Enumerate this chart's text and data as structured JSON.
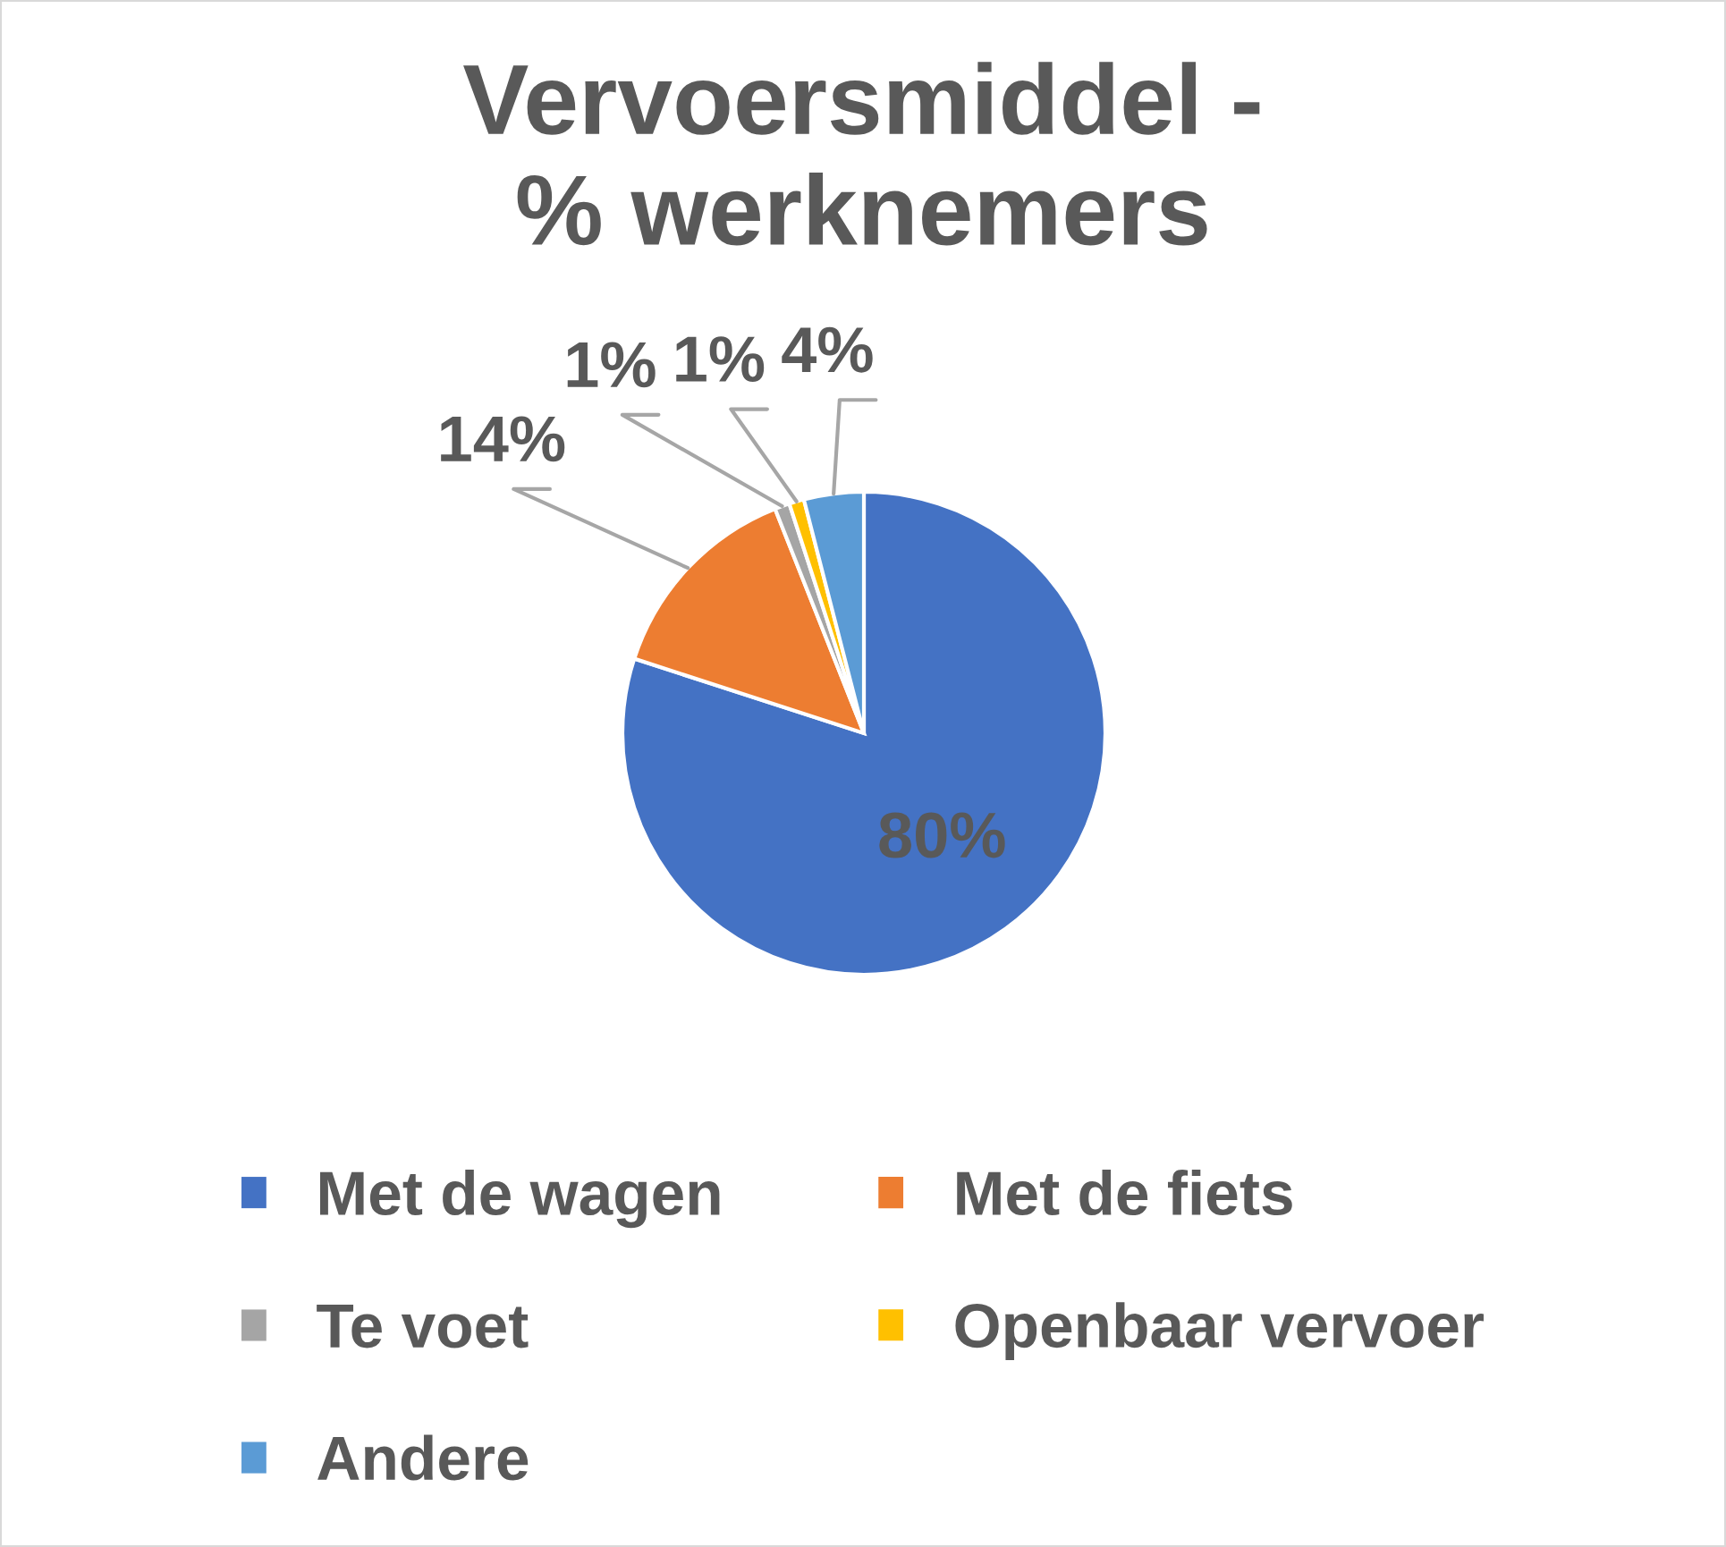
{
  "chart_data": {
    "type": "pie",
    "title": "Vervoersmiddel -\n% werknemers",
    "categories": [
      "Met de wagen",
      "Met de fiets",
      "Te voet",
      "Openbaar vervoer",
      "Andere"
    ],
    "values": [
      80,
      14,
      1,
      1,
      4
    ],
    "colors": [
      "#4472c4",
      "#ed7d31",
      "#a5a5a5",
      "#ffc000",
      "#5b9bd5"
    ],
    "value_labels": [
      "80%",
      "14%",
      "1%",
      "1%",
      "4%"
    ],
    "legend": "bottom"
  }
}
